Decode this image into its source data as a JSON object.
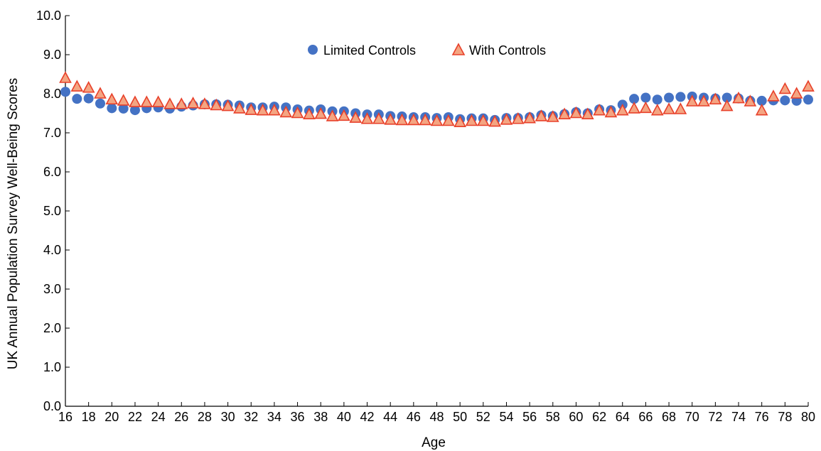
{
  "chart_data": {
    "type": "scatter",
    "xlabel": "Age",
    "ylabel": "UK Annual Population Survey Well-Being Scores",
    "xlim": [
      16,
      80
    ],
    "ylim": [
      0,
      10
    ],
    "x_ticks": [
      16,
      18,
      20,
      22,
      24,
      26,
      28,
      30,
      32,
      34,
      36,
      38,
      40,
      42,
      44,
      46,
      48,
      50,
      52,
      54,
      56,
      58,
      60,
      62,
      64,
      66,
      68,
      70,
      72,
      74,
      76,
      78,
      80
    ],
    "y_ticks": [
      0,
      1,
      2,
      3,
      4,
      5,
      6,
      7,
      8,
      9,
      10
    ],
    "y_tick_labels": [
      "0.0",
      "1.0",
      "2.0",
      "3.0",
      "4.0",
      "5.0",
      "6.0",
      "7.0",
      "8.0",
      "9.0",
      "10.0"
    ],
    "grid": false,
    "legend_position": "top-center",
    "series": [
      {
        "name": "Limited Controls",
        "marker": "circle",
        "color": "#4472C4",
        "x": [
          16,
          17,
          18,
          19,
          20,
          21,
          22,
          23,
          24,
          25,
          26,
          27,
          28,
          29,
          30,
          31,
          32,
          33,
          34,
          35,
          36,
          37,
          38,
          39,
          40,
          41,
          42,
          43,
          44,
          45,
          46,
          47,
          48,
          49,
          50,
          51,
          52,
          53,
          54,
          55,
          56,
          57,
          58,
          59,
          60,
          61,
          62,
          63,
          64,
          65,
          66,
          67,
          68,
          69,
          70,
          71,
          72,
          73,
          74,
          75,
          76,
          77,
          78,
          79,
          80
        ],
        "values": [
          8.05,
          7.87,
          7.88,
          7.75,
          7.63,
          7.62,
          7.58,
          7.63,
          7.65,
          7.62,
          7.67,
          7.7,
          7.73,
          7.73,
          7.72,
          7.7,
          7.65,
          7.65,
          7.67,
          7.65,
          7.6,
          7.57,
          7.6,
          7.55,
          7.55,
          7.5,
          7.47,
          7.47,
          7.43,
          7.42,
          7.4,
          7.4,
          7.38,
          7.4,
          7.35,
          7.37,
          7.37,
          7.33,
          7.38,
          7.38,
          7.4,
          7.45,
          7.43,
          7.48,
          7.53,
          7.5,
          7.6,
          7.58,
          7.72,
          7.87,
          7.9,
          7.85,
          7.9,
          7.92,
          7.93,
          7.9,
          7.88,
          7.9,
          7.88,
          7.82,
          7.82,
          7.83,
          7.83,
          7.82,
          7.85
        ]
      },
      {
        "name": "With Controls",
        "marker": "triangle",
        "color": "#E8402A",
        "x": [
          16,
          17,
          18,
          19,
          20,
          21,
          22,
          23,
          24,
          25,
          26,
          27,
          28,
          29,
          30,
          31,
          32,
          33,
          34,
          35,
          36,
          37,
          38,
          39,
          40,
          41,
          42,
          43,
          44,
          45,
          46,
          47,
          48,
          49,
          50,
          51,
          52,
          53,
          54,
          55,
          56,
          57,
          58,
          59,
          60,
          61,
          62,
          63,
          64,
          65,
          66,
          67,
          68,
          69,
          70,
          71,
          72,
          73,
          74,
          75,
          76,
          77,
          78,
          79,
          80
        ],
        "values": [
          8.4,
          8.18,
          8.15,
          8.0,
          7.85,
          7.82,
          7.78,
          7.78,
          7.78,
          7.73,
          7.73,
          7.75,
          7.73,
          7.7,
          7.68,
          7.62,
          7.58,
          7.57,
          7.57,
          7.52,
          7.5,
          7.47,
          7.48,
          7.42,
          7.43,
          7.38,
          7.35,
          7.35,
          7.33,
          7.32,
          7.32,
          7.32,
          7.3,
          7.3,
          7.27,
          7.3,
          7.3,
          7.28,
          7.33,
          7.35,
          7.37,
          7.42,
          7.4,
          7.47,
          7.5,
          7.47,
          7.57,
          7.52,
          7.57,
          7.62,
          7.63,
          7.57,
          7.6,
          7.6,
          7.8,
          7.8,
          7.85,
          7.68,
          7.88,
          7.8,
          7.57,
          7.93,
          8.12,
          8.0,
          8.18
        ]
      }
    ]
  }
}
